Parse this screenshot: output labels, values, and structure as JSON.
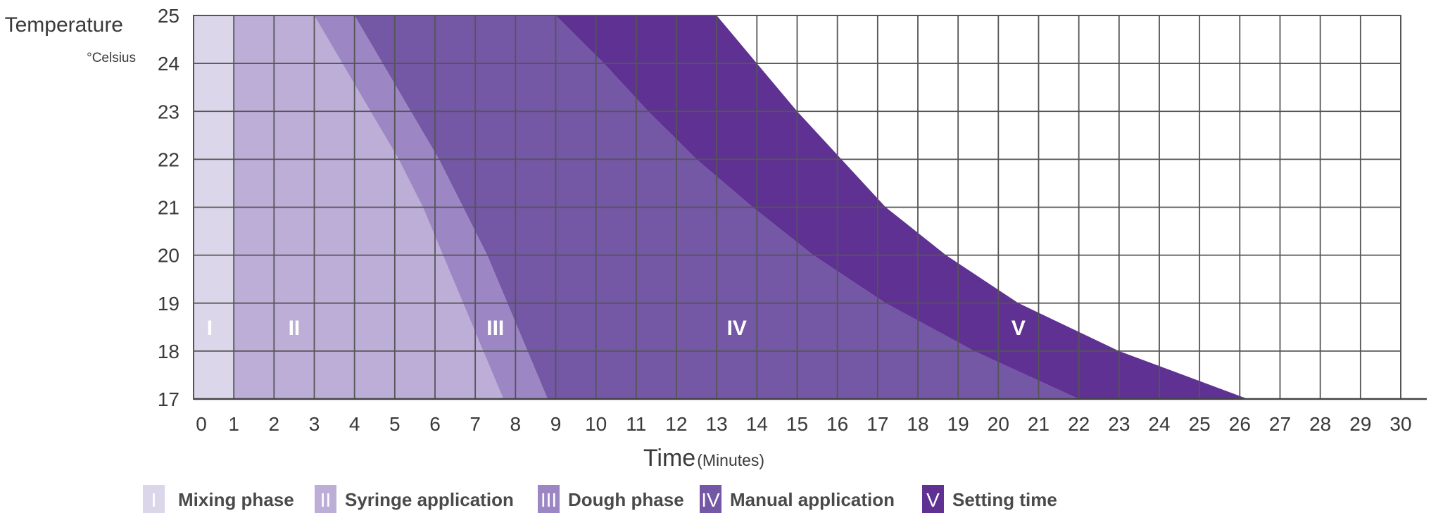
{
  "chart_data": {
    "type": "area",
    "ylabel": "Temperature",
    "yunit": "°Celsius",
    "xlabel": "Time",
    "xunit": "(Minutes)",
    "xlim": [
      0,
      30
    ],
    "ylim": [
      17,
      25
    ],
    "x_ticks": [
      "0",
      "1",
      "2",
      "3",
      "4",
      "5",
      "6",
      "7",
      "8",
      "9",
      "10",
      "11",
      "12",
      "13",
      "14",
      "15",
      "16",
      "17",
      "18",
      "19",
      "20",
      "21",
      "22",
      "23",
      "24",
      "25",
      "26",
      "27",
      "28",
      "29",
      "30"
    ],
    "y_ticks": [
      "17",
      "18",
      "19",
      "20",
      "21",
      "22",
      "23",
      "24",
      "25"
    ],
    "grid": true,
    "temperatures": [
      25,
      24,
      23,
      22,
      21,
      20,
      19,
      18,
      17
    ],
    "boundaries": [
      {
        "name": "end of mixing phase",
        "x": [
          1,
          1,
          1,
          1,
          1,
          1,
          1,
          1,
          1
        ]
      },
      {
        "name": "end of syringe application",
        "x": [
          3,
          3.7,
          4.4,
          5.1,
          5.7,
          6.2,
          6.7,
          7.2,
          7.7
        ]
      },
      {
        "name": "end of dough phase",
        "x": [
          4,
          4.7,
          5.4,
          6.1,
          6.7,
          7.3,
          7.8,
          8.3,
          8.8
        ]
      },
      {
        "name": "end of manual application",
        "x": [
          9,
          10.2,
          11.3,
          12.5,
          13.9,
          15.4,
          17.2,
          19.4,
          22
        ]
      },
      {
        "name": "end of setting time",
        "x": [
          13,
          14,
          15,
          16.1,
          17.2,
          18.7,
          20.5,
          23,
          26.2
        ]
      }
    ],
    "zones": [
      {
        "numeral": "I",
        "name": "Mixing phase",
        "color": "#dcd6ea",
        "label_x": 0.4,
        "label_y": 18.5
      },
      {
        "numeral": "II",
        "name": "Syringe application",
        "color": "#bcaed7",
        "label_x": 2.5,
        "label_y": 18.5
      },
      {
        "numeral": "III",
        "name": "Dough phase",
        "color": "#9c86c4",
        "label_x": 7.5,
        "label_y": 18.5
      },
      {
        "numeral": "IV",
        "name": "Manual application",
        "color": "#7457a5",
        "label_x": 13.5,
        "label_y": 18.5
      },
      {
        "numeral": "V",
        "name": "Setting time",
        "color": "#5e3193",
        "label_x": 20.5,
        "label_y": 18.5
      }
    ]
  }
}
